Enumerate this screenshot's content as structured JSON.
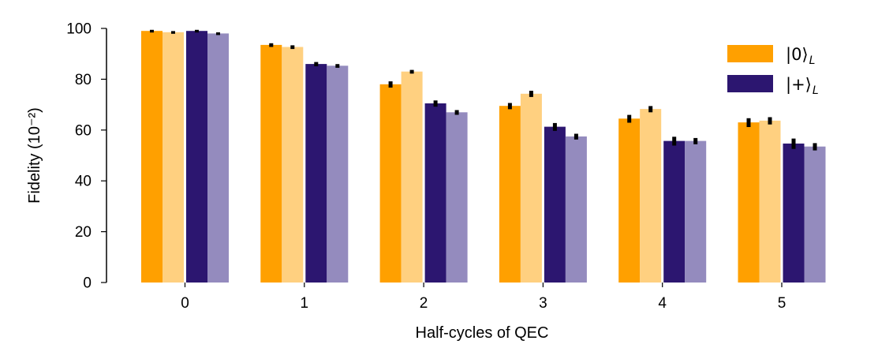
{
  "chart_data": {
    "type": "bar",
    "title": "",
    "xlabel": "Half-cycles of QEC",
    "ylabel": "Fidelity (10⁻²)",
    "ylim": [
      0,
      100
    ],
    "yticks": [
      0,
      20,
      40,
      60,
      80,
      100
    ],
    "categories": [
      "0",
      "1",
      "2",
      "3",
      "4",
      "5"
    ],
    "series": [
      {
        "name": "|0⟩_L",
        "shade": "dark",
        "color": "#FFA000",
        "values": [
          99.0,
          93.5,
          78.0,
          69.5,
          64.5,
          63.0
        ],
        "errors": [
          0.3,
          0.5,
          1.0,
          1.0,
          1.3,
          1.5
        ]
      },
      {
        "name": "|0⟩_L",
        "shade": "light",
        "color": "#FFD080",
        "values": [
          98.5,
          92.7,
          83.0,
          74.3,
          68.3,
          63.7
        ],
        "errors": [
          0.3,
          0.5,
          0.5,
          1.0,
          1.0,
          1.2
        ]
      },
      {
        "name": "|+⟩_L",
        "shade": "dark",
        "color": "#2C1670",
        "values": [
          99.0,
          86.0,
          70.5,
          61.3,
          55.7,
          54.7
        ],
        "errors": [
          0.3,
          0.6,
          1.0,
          1.3,
          1.5,
          1.8
        ]
      },
      {
        "name": "|+⟩_L",
        "shade": "light",
        "color": "#948BBE",
        "values": [
          98.0,
          85.3,
          67.0,
          57.5,
          55.7,
          53.5
        ],
        "errors": [
          0.3,
          0.5,
          0.7,
          0.9,
          1.0,
          1.2
        ]
      }
    ],
    "legend": {
      "position": "top-right",
      "entries": [
        {
          "state": "|0⟩",
          "sub": "L",
          "color": "#FFA000"
        },
        {
          "state": "|+⟩",
          "sub": "L",
          "color": "#2C1670"
        }
      ]
    }
  }
}
